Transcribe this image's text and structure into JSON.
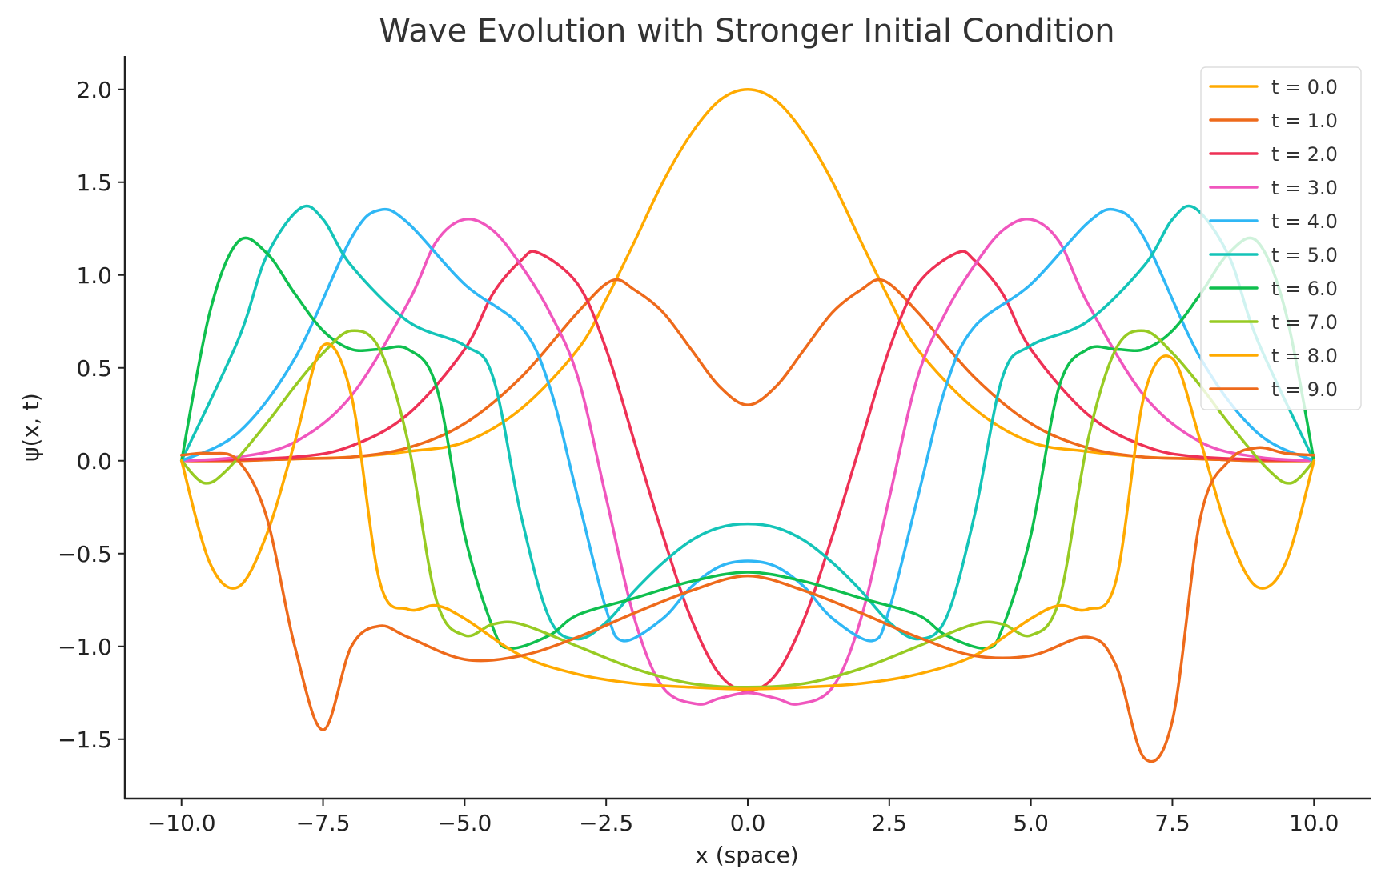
{
  "chart_data": {
    "type": "line",
    "title": "Wave Evolution with Stronger Initial Condition",
    "xlabel": "x (space)",
    "ylabel": "ψ(x, t)",
    "xlim": [
      -11.0,
      11.0
    ],
    "ylim": [
      -1.82,
      2.18
    ],
    "x_ticks": [
      -10.0,
      -7.5,
      -5.0,
      -2.5,
      0.0,
      2.5,
      5.0,
      7.5,
      10.0
    ],
    "x_tick_labels": [
      "−10.0",
      "−7.5",
      "−5.0",
      "−2.5",
      "0.0",
      "2.5",
      "5.0",
      "7.5",
      "10.0"
    ],
    "y_ticks": [
      -1.5,
      -1.0,
      -0.5,
      0.0,
      0.5,
      1.0,
      1.5,
      2.0
    ],
    "y_tick_labels": [
      "−1.5",
      "−1.0",
      "−0.5",
      "0.0",
      "0.5",
      "1.0",
      "1.5",
      "2.0"
    ],
    "grid": false,
    "legend_position": "top-right",
    "series": [
      {
        "name": "t = 0.0",
        "color": "#FFAA00",
        "x": [
          -10,
          -9,
          -8,
          -7,
          -6,
          -5,
          -4,
          -3,
          -2.5,
          -2,
          -1.5,
          -1,
          -0.5,
          0,
          0.5,
          1,
          1.5,
          2,
          2.5,
          3,
          4,
          5,
          6,
          7,
          8,
          9,
          10
        ],
        "y": [
          0,
          0,
          0.01,
          0.02,
          0.05,
          0.1,
          0.28,
          0.6,
          0.87,
          1.18,
          1.5,
          1.76,
          1.94,
          2.0,
          1.94,
          1.76,
          1.5,
          1.18,
          0.87,
          0.6,
          0.28,
          0.1,
          0.05,
          0.02,
          0.01,
          0,
          0
        ]
      },
      {
        "name": "t = 1.0",
        "color": "#EE6A1B",
        "x": [
          -10,
          -9,
          -8,
          -7,
          -6,
          -5,
          -4,
          -3,
          -2.4,
          -2,
          -1.5,
          -1,
          -0.5,
          0,
          0.5,
          1,
          1.5,
          2,
          2.4,
          3,
          4,
          5,
          6,
          7,
          8,
          9,
          10
        ],
        "y": [
          0,
          0,
          0.01,
          0.02,
          0.07,
          0.2,
          0.45,
          0.8,
          0.97,
          0.92,
          0.8,
          0.6,
          0.4,
          0.3,
          0.4,
          0.6,
          0.8,
          0.92,
          0.97,
          0.8,
          0.45,
          0.2,
          0.07,
          0.02,
          0.01,
          0,
          0
        ]
      },
      {
        "name": "t = 2.0",
        "color": "#EE3155",
        "x": [
          -10,
          -8,
          -7,
          -6,
          -5,
          -4.5,
          -4,
          -3.7,
          -3,
          -2.5,
          -2,
          -1.5,
          -1,
          -0.5,
          0,
          0.5,
          1,
          1.5,
          2,
          2.5,
          3,
          3.7,
          4,
          4.5,
          5,
          6,
          7,
          8,
          10
        ],
        "y": [
          0,
          0.02,
          0.08,
          0.25,
          0.6,
          0.9,
          1.08,
          1.12,
          0.95,
          0.6,
          0.1,
          -0.4,
          -0.85,
          -1.15,
          -1.24,
          -1.15,
          -0.85,
          -0.4,
          0.1,
          0.6,
          0.95,
          1.12,
          1.08,
          0.9,
          0.6,
          0.25,
          0.08,
          0.02,
          0
        ]
      },
      {
        "name": "t = 3.0",
        "color": "#F056BE",
        "x": [
          -10,
          -9,
          -8,
          -7,
          -6,
          -5.5,
          -5,
          -4.5,
          -4,
          -3.5,
          -3,
          -2.5,
          -2,
          -1.5,
          -0.9,
          -0.5,
          0,
          0.5,
          0.9,
          1.5,
          2,
          2.5,
          3,
          3.5,
          4,
          4.5,
          5,
          5.5,
          6,
          7,
          8,
          9,
          10
        ],
        "y": [
          0,
          0.02,
          0.1,
          0.35,
          0.85,
          1.18,
          1.3,
          1.24,
          1.05,
          0.8,
          0.45,
          -0.2,
          -0.85,
          -1.22,
          -1.31,
          -1.28,
          -1.25,
          -1.28,
          -1.31,
          -1.22,
          -0.85,
          -0.2,
          0.45,
          0.8,
          1.05,
          1.24,
          1.3,
          1.18,
          0.85,
          0.35,
          0.1,
          0.02,
          0
        ]
      },
      {
        "name": "t = 4.0",
        "color": "#2FB7F5",
        "x": [
          -10,
          -9,
          -8,
          -7,
          -6.5,
          -6,
          -5,
          -4,
          -3.5,
          -3,
          -2.5,
          -2.2,
          -1.5,
          -1,
          -0.5,
          0,
          0.5,
          1,
          1.5,
          2.2,
          2.5,
          3,
          3.5,
          4,
          5,
          6,
          6.5,
          7,
          8,
          9,
          10
        ],
        "y": [
          0,
          0.15,
          0.55,
          1.2,
          1.35,
          1.28,
          0.95,
          0.72,
          0.4,
          -0.2,
          -0.8,
          -0.97,
          -0.85,
          -0.68,
          -0.57,
          -0.54,
          -0.57,
          -0.68,
          -0.85,
          -0.97,
          -0.8,
          -0.2,
          0.4,
          0.72,
          0.95,
          1.28,
          1.35,
          1.2,
          0.55,
          0.15,
          0
        ]
      },
      {
        "name": "t = 5.0",
        "color": "#14C4B8",
        "x": [
          -10,
          -9,
          -8.5,
          -7.9,
          -7.5,
          -7,
          -6,
          -5,
          -4.5,
          -4,
          -3.5,
          -3,
          -2.5,
          -2,
          -1.5,
          -1,
          -0.5,
          0,
          0.5,
          1,
          1.5,
          2,
          2.5,
          3,
          3.5,
          4,
          4.5,
          5,
          6,
          7,
          7.5,
          7.9,
          8.5,
          9,
          10
        ],
        "y": [
          0,
          0.65,
          1.1,
          1.36,
          1.3,
          1.05,
          0.75,
          0.62,
          0.45,
          -0.3,
          -0.85,
          -0.96,
          -0.87,
          -0.7,
          -0.55,
          -0.43,
          -0.36,
          -0.34,
          -0.36,
          -0.43,
          -0.55,
          -0.7,
          -0.87,
          -0.96,
          -0.85,
          -0.3,
          0.45,
          0.62,
          0.75,
          1.05,
          1.3,
          1.36,
          1.1,
          0.65,
          0
        ]
      },
      {
        "name": "t = 6.0",
        "color": "#0FBF4E",
        "x": [
          -10,
          -9.5,
          -9,
          -8.5,
          -8,
          -7.5,
          -7,
          -6.5,
          -6,
          -5.5,
          -5,
          -4.5,
          -4.2,
          -3.5,
          -3,
          -2,
          -1,
          0,
          1,
          2,
          3,
          3.5,
          4.2,
          4.5,
          5,
          5.5,
          6,
          6.5,
          7,
          7.5,
          8,
          8.5,
          9,
          9.5,
          10
        ],
        "y": [
          0,
          0.8,
          1.18,
          1.12,
          0.9,
          0.7,
          0.6,
          0.6,
          0.6,
          0.4,
          -0.4,
          -0.9,
          -1.01,
          -0.94,
          -0.83,
          -0.74,
          -0.65,
          -0.6,
          -0.65,
          -0.74,
          -0.83,
          -0.94,
          -1.01,
          -0.9,
          -0.4,
          0.4,
          0.6,
          0.6,
          0.6,
          0.7,
          0.9,
          1.12,
          1.18,
          0.8,
          0
        ]
      },
      {
        "name": "t = 7.0",
        "color": "#97CB23",
        "x": [
          -10,
          -9.6,
          -9.2,
          -8.5,
          -8,
          -7.5,
          -7,
          -6.5,
          -6,
          -5.5,
          -5,
          -4.5,
          -4,
          -3,
          -2,
          -1,
          0,
          1,
          2,
          3,
          4,
          4.5,
          5,
          5.5,
          6,
          6.5,
          7,
          7.5,
          8,
          8.5,
          9.2,
          9.6,
          10
        ],
        "y": [
          0,
          -0.12,
          -0.05,
          0.2,
          0.4,
          0.58,
          0.7,
          0.6,
          0.1,
          -0.75,
          -0.94,
          -0.88,
          -0.88,
          -1.0,
          -1.12,
          -1.2,
          -1.22,
          -1.2,
          -1.12,
          -1.0,
          -0.88,
          -0.88,
          -0.94,
          -0.75,
          0.1,
          0.6,
          0.7,
          0.58,
          0.4,
          0.2,
          -0.05,
          -0.12,
          0
        ]
      },
      {
        "name": "t = 8.0",
        "color": "#FFAA00",
        "x": [
          -10,
          -9.5,
          -9,
          -8.5,
          -8,
          -7.5,
          -7,
          -6.5,
          -6,
          -5.5,
          -5,
          -4,
          -3,
          -2,
          -1,
          0,
          1,
          2,
          3,
          4,
          5,
          5.5,
          6,
          6.5,
          7,
          7.5,
          8,
          8.5,
          9,
          9.5,
          10
        ],
        "y": [
          0,
          -0.55,
          -0.68,
          -0.4,
          0.1,
          0.62,
          0.35,
          -0.65,
          -0.8,
          -0.78,
          -0.85,
          -1.05,
          -1.15,
          -1.2,
          -1.22,
          -1.23,
          -1.22,
          -1.2,
          -1.15,
          -1.05,
          -0.85,
          -0.78,
          -0.8,
          -0.65,
          0.35,
          0.55,
          0.1,
          -0.4,
          -0.68,
          -0.55,
          0
        ]
      },
      {
        "name": "t = 9.0",
        "color": "#EE6A1B",
        "x": [
          -10,
          -9.5,
          -9,
          -8.5,
          -8,
          -7.5,
          -7,
          -6.5,
          -6,
          -5,
          -4,
          -3,
          -2,
          -1,
          0,
          1,
          2,
          3,
          4,
          5,
          6,
          6.5,
          7,
          7.5,
          8,
          8.5,
          9,
          9.5,
          10
        ],
        "y": [
          0.03,
          0.04,
          0.0,
          -0.3,
          -1.0,
          -1.45,
          -1.0,
          -0.89,
          -0.95,
          -1.07,
          -1.05,
          -0.95,
          -0.82,
          -0.7,
          -0.62,
          -0.7,
          -0.82,
          -0.95,
          -1.05,
          -1.05,
          -0.95,
          -1.1,
          -1.6,
          -1.4,
          -0.3,
          0.0,
          0.07,
          0.04,
          0.03
        ]
      }
    ]
  }
}
